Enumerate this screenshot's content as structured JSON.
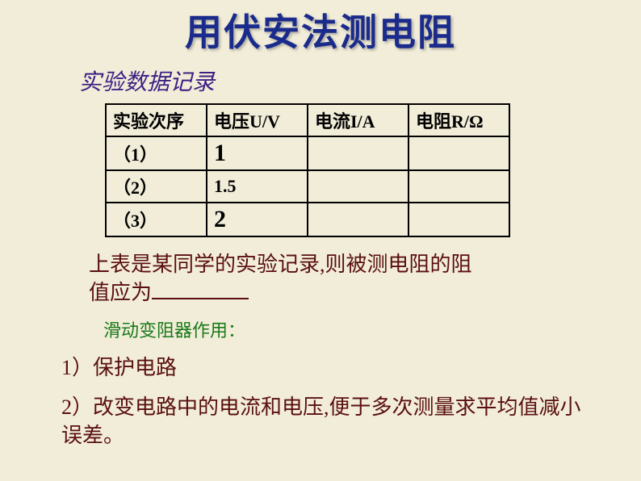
{
  "colors": {
    "background": "#f2edd9",
    "title": "#1a2b8c",
    "subheading": "#3d1f84",
    "table_border": "#000000",
    "table_text": "#000000",
    "statement": "#5a1010",
    "rheostat_note": "#1a7a1a",
    "points": "#5a1010",
    "blank_line": "#5a1010"
  },
  "title": "用伏安法测电阻",
  "subheading": "实验数据记录",
  "table": {
    "headers": [
      "实验次序",
      "电压U/V",
      "电流I/A",
      "电阻R/Ω"
    ],
    "rows": [
      {
        "idx": "（1）",
        "u": "1",
        "i": "",
        "r": ""
      },
      {
        "idx": "（2）",
        "u": "1.5",
        "i": "",
        "r": ""
      },
      {
        "idx": "（3）",
        "u": "2",
        "i": "",
        "r": ""
      }
    ]
  },
  "statement": {
    "line1": "上表是某同学的实验记录,则被测电阻的阻",
    "line2_pre": "值应为"
  },
  "rheostat_note": "滑动变阻器作用：",
  "points": {
    "p1": "1）保护电路",
    "p2": "2）改变电路中的电流和电压,便于多次测量求平均值减小误差。"
  },
  "typography": {
    "title_fontsize": 46,
    "subheading_fontsize": 28,
    "table_header_fontsize": 22,
    "statement_fontsize": 26,
    "note_fontsize": 22,
    "point_fontsize": 26,
    "font_family": "KaiTi"
  }
}
